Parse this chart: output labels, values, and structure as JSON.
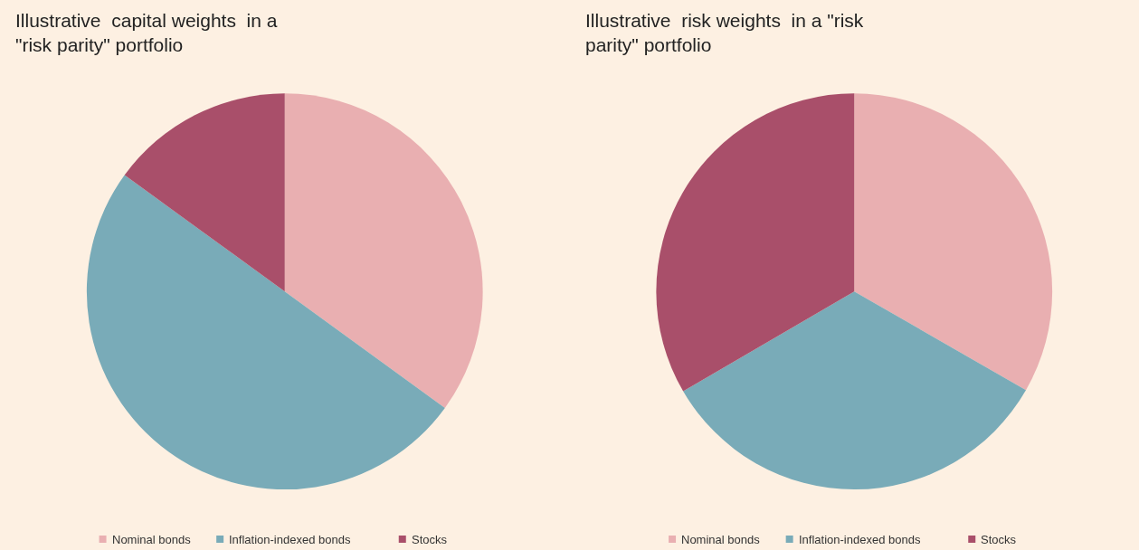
{
  "chart_data": [
    {
      "type": "pie",
      "title": "Illustrative  capital weights  in a \"risk parity\" portfolio",
      "categories": [
        "Nominal bonds",
        "Inflation-indexed bonds",
        "Stocks"
      ],
      "values": [
        35,
        50,
        15
      ],
      "colors": [
        "#e9afb1",
        "#79abb8",
        "#a94f6a"
      ],
      "legend": "bottom"
    },
    {
      "type": "pie",
      "title": "Illustrative  risk weights  in a \"risk parity\" portfolio",
      "categories": [
        "Nominal bonds",
        "Inflation-indexed bonds",
        "Stocks"
      ],
      "values": [
        33.3,
        33.3,
        33.4
      ],
      "colors": [
        "#e9afb1",
        "#79abb8",
        "#a94f6a"
      ],
      "legend": "bottom"
    }
  ]
}
